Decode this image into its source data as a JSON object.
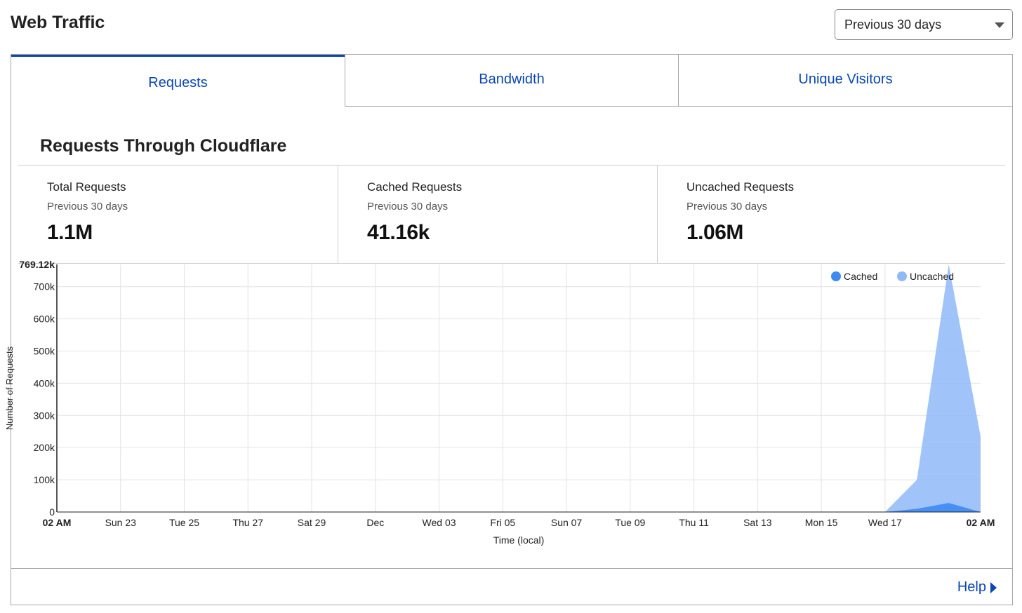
{
  "header": {
    "title": "Web Traffic",
    "range_select": {
      "value": "Previous 30 days"
    }
  },
  "tabs": [
    {
      "label": "Requests",
      "active": true
    },
    {
      "label": "Bandwidth",
      "active": false
    },
    {
      "label": "Unique Visitors",
      "active": false
    }
  ],
  "section": {
    "title": "Requests Through Cloudflare"
  },
  "stats": [
    {
      "label": "Total Requests",
      "period": "Previous 30 days",
      "value": "1.1M"
    },
    {
      "label": "Cached Requests",
      "period": "Previous 30 days",
      "value": "41.16k"
    },
    {
      "label": "Uncached Requests",
      "period": "Previous 30 days",
      "value": "1.06M"
    }
  ],
  "chart_data": {
    "type": "area",
    "title": "",
    "xlabel": "Time (local)",
    "ylabel": "Number of Requests",
    "ylim": [
      0,
      769120
    ],
    "y_ticks": [
      {
        "value": 0,
        "label": "0"
      },
      {
        "value": 100000,
        "label": "100k"
      },
      {
        "value": 200000,
        "label": "200k"
      },
      {
        "value": 300000,
        "label": "300k"
      },
      {
        "value": 400000,
        "label": "400k"
      },
      {
        "value": 500000,
        "label": "500k"
      },
      {
        "value": 600000,
        "label": "600k"
      },
      {
        "value": 700000,
        "label": "700k"
      },
      {
        "value": 769120,
        "label": "769.12k",
        "bold": true
      }
    ],
    "x_range": [
      0,
      29
    ],
    "x_ticks": [
      {
        "x": 0,
        "label": "02 AM",
        "bold": true
      },
      {
        "x": 2,
        "label": "Sun 23"
      },
      {
        "x": 4,
        "label": "Tue 25"
      },
      {
        "x": 6,
        "label": "Thu 27"
      },
      {
        "x": 8,
        "label": "Sat 29"
      },
      {
        "x": 10,
        "label": "Dec"
      },
      {
        "x": 12,
        "label": "Wed 03"
      },
      {
        "x": 14,
        "label": "Fri 05"
      },
      {
        "x": 16,
        "label": "Sun 07"
      },
      {
        "x": 18,
        "label": "Tue 09"
      },
      {
        "x": 20,
        "label": "Thu 11"
      },
      {
        "x": 22,
        "label": "Sat 13"
      },
      {
        "x": 24,
        "label": "Mon 15"
      },
      {
        "x": 26,
        "label": "Wed 17"
      },
      {
        "x": 29,
        "label": "02 AM",
        "bold": true
      }
    ],
    "legend_position": "top-right",
    "series": [
      {
        "name": "Cached",
        "color": "#3d8bf2",
        "points": [
          [
            26,
            0
          ],
          [
            27,
            10000
          ],
          [
            28,
            28000
          ],
          [
            29,
            0
          ]
        ]
      },
      {
        "name": "Uncached",
        "color": "#8fbaf8",
        "points": [
          [
            26,
            0
          ],
          [
            27,
            100000
          ],
          [
            28,
            769120
          ],
          [
            29,
            235000
          ]
        ]
      }
    ]
  },
  "footer": {
    "help_label": "Help"
  }
}
